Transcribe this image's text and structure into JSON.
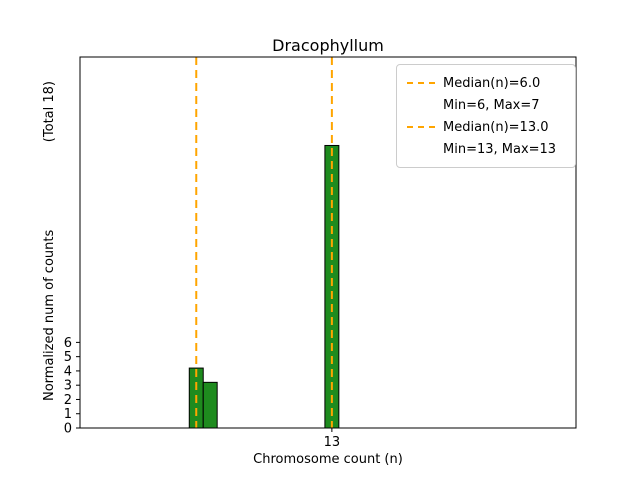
{
  "title": "Dracophyllum",
  "xlabel": "Chromosome count (n)",
  "ylabel": "Normalized num of counts",
  "ylabel_total": "(Total 18)",
  "legend": {
    "items": [
      {
        "label": "Median(n)=6.0",
        "handle": "dashed-line"
      },
      {
        "label": "Min=6, Max=7",
        "handle": "none"
      },
      {
        "label": "Median(n)=13.0",
        "handle": "dashed-line"
      },
      {
        "label": "Min=13, Max=13",
        "handle": "none"
      }
    ]
  },
  "colors": {
    "bar_fill": "#1e8b1e",
    "bar_edge": "#000000",
    "median_line": "#ffa500",
    "axis": "#000000"
  },
  "chart_data": {
    "type": "bar",
    "title": "Dracophyllum",
    "xlabel": "Chromosome count (n)",
    "ylabel": "Normalized num of counts (Total 18)",
    "total_counts": 18,
    "bars": [
      {
        "x": 6.0,
        "height": 4.2
      },
      {
        "x": 6.72,
        "height": 3.2
      },
      {
        "x": 13.0,
        "height": 19.8
      }
    ],
    "bar_width": 0.72,
    "median_lines": [
      {
        "x": 6.0,
        "label": "Median(n)=6.0",
        "range": "Min=6, Max=7"
      },
      {
        "x": 13.0,
        "label": "Median(n)=13.0",
        "range": "Min=13, Max=13"
      }
    ],
    "xlim": [
      0,
      25.6
    ],
    "ylim": [
      0,
      26
    ],
    "yticks": [
      0,
      1,
      2,
      3,
      4,
      5,
      6
    ],
    "xticks": [
      13
    ],
    "grid": false,
    "legend_position": "upper right"
  }
}
